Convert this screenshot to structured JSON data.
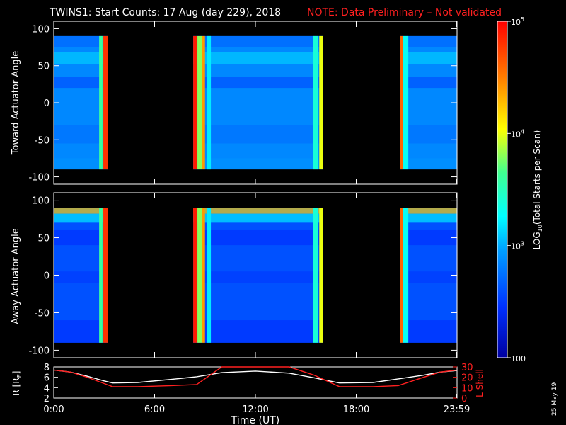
{
  "title": {
    "main": "TWINS1: Start Counts: 17 Aug (day 229), 2018",
    "note": "NOTE: Data Preliminary – Not validated",
    "note_color": "#ff2020"
  },
  "date_stamp": "25 May 19",
  "chart_data": [
    {
      "type": "heatmap",
      "name": "toward",
      "ylabel": "Toward Actuator Angle",
      "ylim": [
        -110,
        110
      ],
      "yticks": [
        "-100",
        "-50",
        "0",
        "50",
        "100"
      ],
      "xlim_hours": [
        0,
        24
      ],
      "data_blocks_hours": [
        [
          0,
          3.2
        ],
        [
          8.3,
          16
        ],
        [
          20.6,
          24
        ]
      ],
      "background_log10": 2.85
    },
    {
      "type": "heatmap",
      "name": "away",
      "ylabel": "Away Actuator Angle",
      "ylim": [
        -110,
        110
      ],
      "yticks": [
        "-100",
        "-50",
        "0",
        "50",
        "100"
      ],
      "xlim_hours": [
        0,
        24
      ],
      "data_blocks_hours": [
        [
          0,
          3.2
        ],
        [
          8.3,
          16
        ],
        [
          20.6,
          24
        ]
      ],
      "background_log10": 2.6
    },
    {
      "type": "line",
      "name": "orbit",
      "ylabel_left": "R [R",
      "ylabel_left_sub": "E",
      "ylabel_left_end": "]",
      "ylabel_right": "L Shell",
      "ylim_left": [
        2,
        8
      ],
      "yticks_left": [
        "2",
        "4",
        "6",
        "8"
      ],
      "ylim_right": [
        0,
        30
      ],
      "yticks_right": [
        "0",
        "10",
        "20",
        "30"
      ],
      "x_hours": [
        0,
        1,
        2,
        3,
        3.5,
        5,
        7,
        8.5,
        10,
        12,
        14,
        15.5,
        17,
        19,
        20.5,
        22,
        23,
        24
      ],
      "series": [
        {
          "axis": "left",
          "color": "#ffffff",
          "values": [
            7.4,
            7.0,
            6.2,
            5.3,
            4.9,
            5.0,
            5.6,
            6.1,
            6.9,
            7.2,
            6.8,
            5.9,
            4.9,
            5.0,
            5.7,
            6.4,
            7.0,
            7.3
          ]
        },
        {
          "axis": "right",
          "color": "#ff2020",
          "values": [
            27,
            25,
            20,
            14,
            11,
            11,
            12,
            13,
            30,
            30,
            30,
            22,
            11,
            11,
            12,
            20,
            25,
            27
          ]
        }
      ]
    }
  ],
  "x_axis": {
    "label": "Time (UT)",
    "ticks": [
      {
        "hour": 0,
        "label": "0:00"
      },
      {
        "hour": 6,
        "label": "6:00"
      },
      {
        "hour": 12,
        "label": "12:00"
      },
      {
        "hour": 18,
        "label": "18:00"
      },
      {
        "hour": 23.98,
        "label": "23:59"
      }
    ]
  },
  "colorbar": {
    "label_pre": "LOG",
    "label_sub": "10",
    "label_post": "(Total Starts per Scan)",
    "range_log10": [
      2,
      5
    ],
    "ticks": [
      {
        "log10": 5,
        "base": "10",
        "exp": "5"
      },
      {
        "log10": 4,
        "base": "10",
        "exp": "4"
      },
      {
        "log10": 3,
        "base": "10",
        "exp": "3"
      },
      {
        "log10": 2,
        "text": "100"
      }
    ]
  }
}
